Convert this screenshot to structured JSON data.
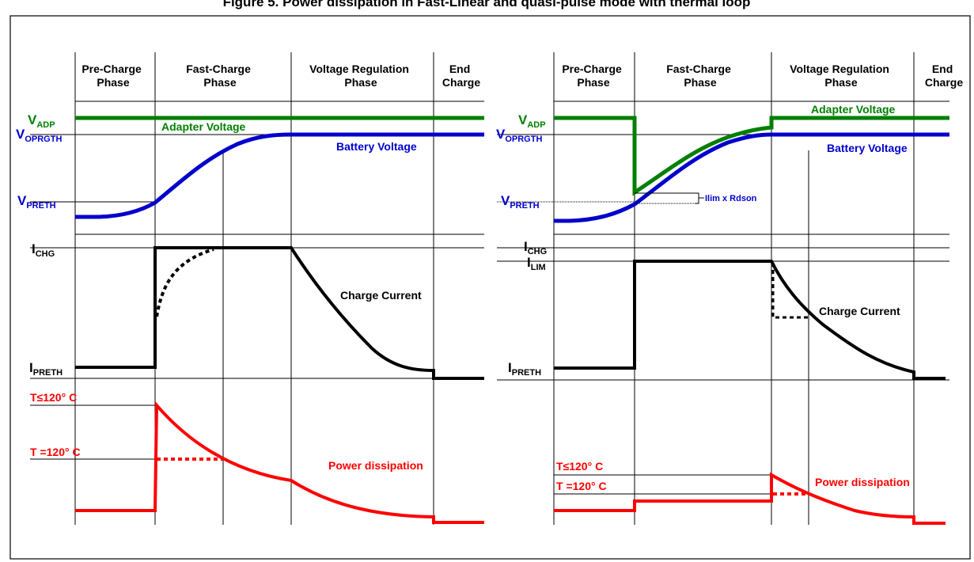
{
  "title": "Figure 5. Power dissipation in Fast-Linear and quasi-pulse mode with thermal loop",
  "phases": {
    "pre_charge": [
      "Pre-Charge",
      "Phase"
    ],
    "fast_charge": [
      "Fast-Charge",
      "Phase"
    ],
    "voltage_regulation": [
      "Voltage Regulation",
      "Phase"
    ],
    "end_charge": [
      "End",
      "Charge"
    ]
  },
  "labels": {
    "v_adp": {
      "main": "V",
      "sub": "ADP"
    },
    "v_oprgth": {
      "main": "V",
      "sub": "OPRGTH"
    },
    "v_preth": {
      "main": "V",
      "sub": "PRETH"
    },
    "i_chg": {
      "main": "I",
      "sub": "CHG"
    },
    "i_lim": {
      "main": "I",
      "sub": "LIM"
    },
    "i_preth": {
      "main": "I",
      "sub": "PRETH"
    },
    "t_le": "T≤120° C",
    "t_eq": "T =120° C"
  },
  "annotations": {
    "adapter_voltage": "Adapter Voltage",
    "battery_voltage": "Battery Voltage",
    "charge_current": "Charge Current",
    "power_dissipation": "Power dissipation",
    "ilim_rdson": "Ilim x Rdson"
  },
  "colors": {
    "adapter": "#008000",
    "battery": "#0000cc",
    "current": "#000000",
    "power": "#ff0000",
    "grid": "#000000"
  }
}
